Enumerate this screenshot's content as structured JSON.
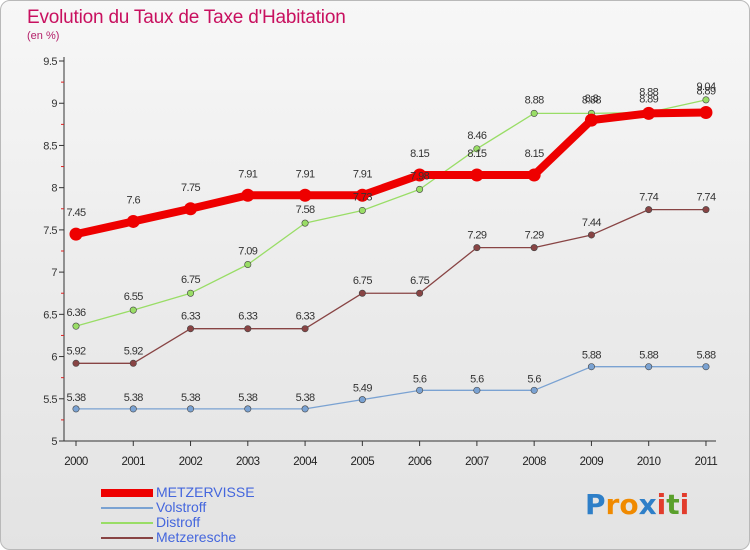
{
  "chart_data": {
    "type": "line",
    "title": "Evolution du Taux de Taxe d'Habitation",
    "subtitle": "(en %)",
    "categories": [
      "2000",
      "2001",
      "2002",
      "2003",
      "2004",
      "2005",
      "2006",
      "2007",
      "2008",
      "2009",
      "2010",
      "2011"
    ],
    "ylim": [
      5,
      9.5
    ],
    "yticks": [
      "5",
      "5.5",
      "6",
      "6.5",
      "7",
      "7.5",
      "8",
      "8.5",
      "9",
      "9.5"
    ],
    "grid": false,
    "legend_position": "bottom-left",
    "series": [
      {
        "name": "METZERVISSE",
        "color": "#ee0000",
        "emphasis": true,
        "values": [
          7.45,
          7.6,
          7.75,
          7.91,
          7.91,
          7.91,
          8.15,
          8.15,
          8.15,
          8.8,
          8.88,
          8.89
        ],
        "labels": [
          "7.45",
          "7.6",
          "7.75",
          "7.91",
          "7.91",
          "7.91",
          "8.15",
          "8.15",
          "8.15",
          "8.8",
          "8.88",
          "8.89"
        ]
      },
      {
        "name": "Volstroff",
        "color": "#7aa2d2",
        "values": [
          5.38,
          5.38,
          5.38,
          5.38,
          5.38,
          5.49,
          5.6,
          5.6,
          5.6,
          5.88,
          5.88,
          5.88
        ],
        "labels": [
          "5.38",
          "5.38",
          "5.38",
          "5.38",
          "5.38",
          "5.49",
          "5.6",
          "5.6",
          "5.6",
          "5.88",
          "5.88",
          "5.88"
        ]
      },
      {
        "name": "Distroff",
        "color": "#99dd66",
        "values": [
          6.36,
          6.55,
          6.75,
          7.09,
          7.58,
          7.73,
          7.98,
          8.46,
          8.88,
          8.88,
          8.89,
          9.04
        ],
        "labels": [
          "6.36",
          "6.55",
          "6.75",
          "7.09",
          "7.58",
          "7.73",
          "7.98",
          "8.46",
          "8.88",
          "8.88",
          "8.89",
          "9.04"
        ]
      },
      {
        "name": "Metzeresche",
        "color": "#884444",
        "values": [
          5.92,
          5.92,
          6.33,
          6.33,
          6.33,
          6.75,
          6.75,
          7.29,
          7.29,
          7.44,
          7.74,
          7.74
        ],
        "labels": [
          "5.92",
          "5.92",
          "6.33",
          "6.33",
          "6.33",
          "6.75",
          "6.75",
          "7.29",
          "7.29",
          "7.44",
          "7.74",
          "7.74"
        ]
      }
    ]
  },
  "brand": {
    "text": "Proxiti",
    "letters": [
      "P",
      "r",
      "o",
      "x",
      "i",
      "t",
      "i"
    ],
    "colors": [
      "#2e7fc8",
      "#f08a00",
      "#f08a00",
      "#2e7fc8",
      "#e23c2c",
      "#5aa02c",
      "#e23c2c"
    ]
  }
}
